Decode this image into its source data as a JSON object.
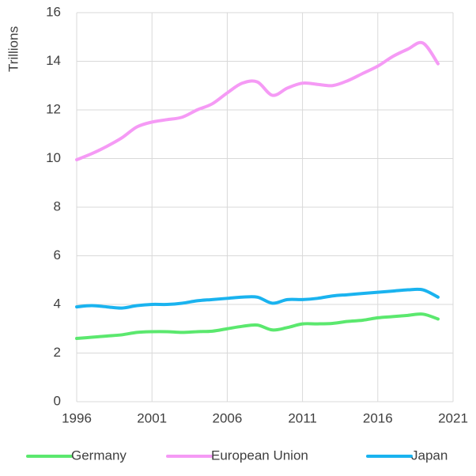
{
  "chart_data": {
    "type": "line",
    "y_label": "Trillions",
    "x": [
      1996,
      1997,
      1998,
      1999,
      2000,
      2001,
      2002,
      2003,
      2004,
      2005,
      2006,
      2007,
      2008,
      2009,
      2010,
      2011,
      2012,
      2013,
      2014,
      2015,
      2016,
      2017,
      2018,
      2019,
      2020
    ],
    "series": [
      {
        "name": "Germany",
        "color": "#5be86e",
        "values": [
          2.6,
          2.65,
          2.7,
          2.75,
          2.85,
          2.88,
          2.88,
          2.85,
          2.88,
          2.9,
          3.0,
          3.1,
          3.15,
          2.95,
          3.05,
          3.2,
          3.2,
          3.22,
          3.3,
          3.35,
          3.45,
          3.5,
          3.55,
          3.6,
          3.4
        ]
      },
      {
        "name": "European Union",
        "color": "#f59af5",
        "values": [
          9.95,
          10.2,
          10.5,
          10.85,
          11.3,
          11.5,
          11.6,
          11.7,
          12.0,
          12.25,
          12.7,
          13.1,
          13.15,
          12.6,
          12.9,
          13.1,
          13.05,
          13.0,
          13.2,
          13.5,
          13.8,
          14.2,
          14.5,
          14.75,
          13.9
        ]
      },
      {
        "name": "Japan",
        "color": "#1ab3ef",
        "values": [
          3.9,
          3.95,
          3.9,
          3.85,
          3.95,
          4.0,
          4.0,
          4.05,
          4.15,
          4.2,
          4.25,
          4.3,
          4.3,
          4.05,
          4.2,
          4.2,
          4.25,
          4.35,
          4.4,
          4.45,
          4.5,
          4.55,
          4.6,
          4.6,
          4.3
        ]
      }
    ],
    "xlim": [
      1996,
      2021
    ],
    "xticks": [
      1996,
      2001,
      2006,
      2011,
      2016,
      2021
    ],
    "ylim": [
      0,
      16
    ],
    "yticks": [
      0,
      2,
      4,
      6,
      8,
      10,
      12,
      14,
      16
    ],
    "grid": true,
    "legend": "bottom"
  }
}
